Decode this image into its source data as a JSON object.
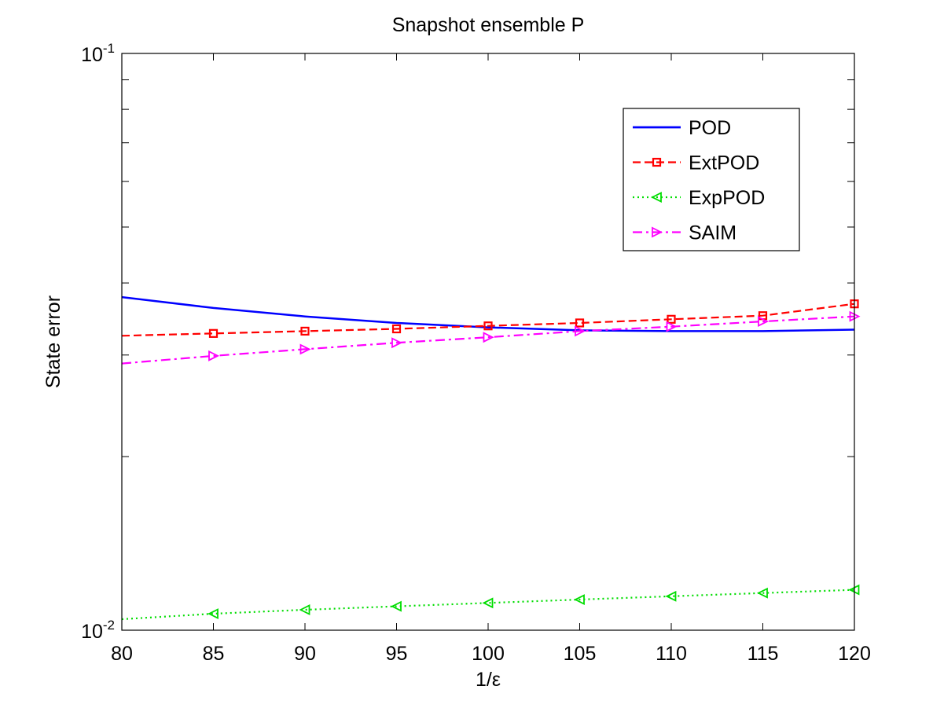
{
  "chart_data": {
    "type": "line",
    "title": "Snapshot ensemble P",
    "xlabel": "1/ε",
    "ylabel": "State error",
    "xlim": [
      80,
      120
    ],
    "ylim": [
      0.01,
      0.1
    ],
    "yscale": "log",
    "x_ticks": [
      "80",
      "85",
      "90",
      "95",
      "100",
      "105",
      "110",
      "115",
      "120"
    ],
    "y_tick_labels": [
      {
        "base": "10",
        "exp": "-1",
        "value": 0.1
      },
      {
        "base": "10",
        "exp": "-2",
        "value": 0.01
      }
    ],
    "grid": false,
    "legend_position": "top-right",
    "series": [
      {
        "name": "POD",
        "color": "#0000ff",
        "style": "solid",
        "marker": "none",
        "x": [
          80,
          85,
          90,
          95,
          100,
          105,
          110,
          115,
          120
        ],
        "values": [
          0.0378,
          0.0362,
          0.035,
          0.0341,
          0.0335,
          0.0331,
          0.033,
          0.033,
          0.0332
        ]
      },
      {
        "name": "ExtPOD",
        "color": "#ff0000",
        "style": "dashed",
        "marker": "square",
        "x": [
          80,
          85,
          90,
          95,
          100,
          105,
          110,
          115,
          120
        ],
        "values": [
          0.0324,
          0.0327,
          0.033,
          0.0333,
          0.0337,
          0.0341,
          0.0346,
          0.0351,
          0.0368
        ]
      },
      {
        "name": "ExpPOD",
        "color": "#00dd00",
        "style": "dotted",
        "marker": "triangle-left",
        "x": [
          80,
          85,
          90,
          95,
          100,
          105,
          110,
          115,
          120
        ],
        "values": [
          0.01045,
          0.01068,
          0.01085,
          0.011,
          0.01115,
          0.0113,
          0.01145,
          0.0116,
          0.01175
        ]
      },
      {
        "name": "SAIM",
        "color": "#ff00ff",
        "style": "dashdot",
        "marker": "triangle-right",
        "x": [
          80,
          85,
          90,
          95,
          100,
          105,
          110,
          115,
          120
        ],
        "values": [
          0.029,
          0.0299,
          0.0307,
          0.0315,
          0.0322,
          0.033,
          0.0336,
          0.0343,
          0.035
        ]
      }
    ]
  }
}
